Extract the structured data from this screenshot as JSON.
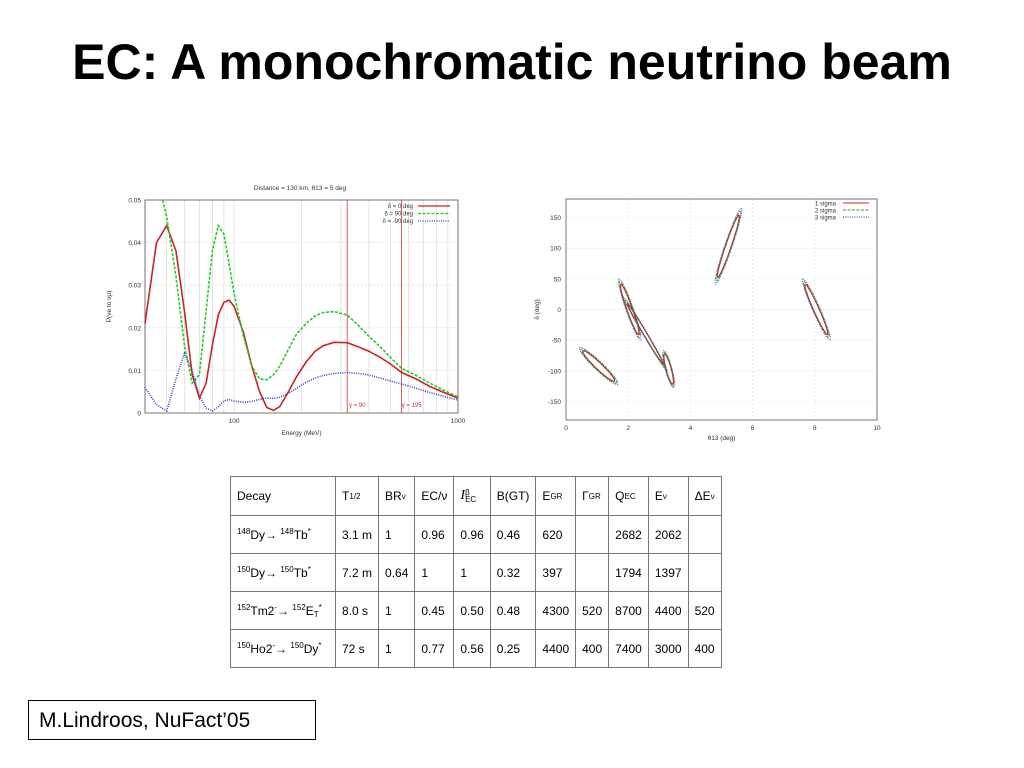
{
  "slide": {
    "title": "EC: A monochromatic neutrino beam",
    "credit": "M.Lindroos, NuFact’05"
  },
  "chart_data": [
    {
      "type": "line",
      "title": "Distance = 130 km, θ13 = 5 deg",
      "xlabel": "Energy (MeV)",
      "ylabel": "P(νe to νμ)",
      "xscale": "log",
      "xlim": [
        40,
        1000
      ],
      "ylim": [
        0,
        0.05
      ],
      "x_ticks": [
        "100",
        "1000"
      ],
      "y_ticks": [
        "0",
        "0.01",
        "0.02",
        "0.03",
        "0.04",
        "0.05"
      ],
      "legend_position": "top-right",
      "annotations": [
        {
          "text": "γ = 90",
          "x": 320
        },
        {
          "text": "γ = 195",
          "x": 560
        }
      ],
      "series": [
        {
          "name": "δ = 0 deg",
          "color": "#cc2222",
          "style": "solid",
          "x": [
            40,
            45,
            50,
            55,
            60,
            65,
            70,
            75,
            80,
            85,
            90,
            95,
            100,
            110,
            120,
            130,
            140,
            150,
            160,
            175,
            190,
            210,
            230,
            250,
            280,
            320,
            360,
            400,
            450,
            500,
            560,
            650,
            750,
            850,
            1000
          ],
          "y": [
            0.021,
            0.04,
            0.044,
            0.038,
            0.024,
            0.009,
            0.0035,
            0.007,
            0.016,
            0.023,
            0.026,
            0.0265,
            0.025,
            0.019,
            0.011,
            0.005,
            0.0013,
            0.0006,
            0.0015,
            0.005,
            0.0085,
            0.012,
            0.0145,
            0.0158,
            0.0166,
            0.0165,
            0.0155,
            0.0145,
            0.013,
            0.0115,
            0.0095,
            0.008,
            0.0062,
            0.005,
            0.0035
          ]
        },
        {
          "name": "δ = 90 deg",
          "color": "#22cc22",
          "style": "dashed",
          "x": [
            48,
            50,
            55,
            60,
            65,
            70,
            75,
            80,
            85,
            90,
            95,
            100,
            110,
            120,
            130,
            140,
            150,
            160,
            175,
            190,
            210,
            230,
            250,
            280,
            320,
            360,
            400,
            450,
            500,
            560,
            650,
            750,
            850,
            1000
          ],
          "y": [
            0.05,
            0.046,
            0.032,
            0.016,
            0.007,
            0.009,
            0.024,
            0.038,
            0.044,
            0.042,
            0.035,
            0.028,
            0.018,
            0.011,
            0.008,
            0.0078,
            0.009,
            0.011,
            0.015,
            0.0185,
            0.021,
            0.0228,
            0.0236,
            0.0238,
            0.023,
            0.0205,
            0.018,
            0.0155,
            0.013,
            0.0105,
            0.0088,
            0.007,
            0.0055,
            0.0038
          ]
        },
        {
          "name": "δ = -90 deg",
          "color": "#3344bb",
          "style": "dotted",
          "x": [
            40,
            45,
            50,
            55,
            60,
            65,
            70,
            75,
            80,
            85,
            90,
            95,
            100,
            110,
            120,
            130,
            140,
            150,
            160,
            175,
            190,
            210,
            230,
            250,
            280,
            320,
            360,
            400,
            450,
            500,
            560,
            650,
            750,
            850,
            1000
          ],
          "y": [
            0.006,
            0.002,
            0.0005,
            0.008,
            0.014,
            0.01,
            0.004,
            0.0012,
            0.0005,
            0.0015,
            0.0028,
            0.0032,
            0.0028,
            0.0025,
            0.0027,
            0.0032,
            0.0035,
            0.0034,
            0.0037,
            0.0046,
            0.0058,
            0.0072,
            0.0082,
            0.0088,
            0.0093,
            0.0095,
            0.0093,
            0.0089,
            0.0082,
            0.0075,
            0.0068,
            0.0058,
            0.0048,
            0.004,
            0.003
          ]
        }
      ]
    },
    {
      "type": "scatter",
      "title": "",
      "xlabel": "θ13 (deg)",
      "ylabel": "δ (deg)",
      "xlim": [
        0,
        10
      ],
      "ylim": [
        -180,
        180
      ],
      "x_ticks": [
        "0",
        "2",
        "4",
        "6",
        "8",
        "10"
      ],
      "y_ticks": [
        "150",
        "100",
        "50",
        "0",
        "-50",
        "-100",
        "-150"
      ],
      "legend_position": "top-right",
      "series": [
        {
          "name": "1 sigma",
          "color": "#cc2222",
          "style": "solid"
        },
        {
          "name": "2 sigma",
          "color": "#22aa22",
          "style": "dashed"
        },
        {
          "name": "3 sigma",
          "color": "#3344bb",
          "style": "dotted"
        }
      ],
      "regions": [
        {
          "cx": 1.05,
          "cy": -92,
          "dx": 0.62,
          "dy": -30,
          "w": 0.14
        },
        {
          "cx": 2.05,
          "cy": 0,
          "dx": 0.35,
          "dy": -50,
          "w": 0.12
        },
        {
          "cx": 3.3,
          "cy": -97,
          "dx": 0.16,
          "dy": -30,
          "w": 0.11
        },
        {
          "cx": 5.22,
          "cy": 103,
          "dx": 0.42,
          "dy": 62,
          "w": 0.12
        },
        {
          "cx": 8.05,
          "cy": 0,
          "dx": -0.44,
          "dy": 50,
          "w": 0.12
        },
        {
          "cx": 2.55,
          "cy": -40,
          "dx": 0.7,
          "dy": -60,
          "w": 0.07
        }
      ]
    }
  ],
  "table": {
    "headers": [
      {
        "main": "Decay"
      },
      {
        "main": "T",
        "sub": "1/2"
      },
      {
        "main": "BR",
        "sub": "ν"
      },
      {
        "main": "EC/ν"
      },
      {
        "main": "I",
        "sup": "β",
        "sub": "EC"
      },
      {
        "main": "B(GT)"
      },
      {
        "main": "E",
        "sub": "GR"
      },
      {
        "main": "Γ",
        "sub": "GR"
      },
      {
        "main": "Q",
        "sub": "EC"
      },
      {
        "main": "E",
        "sub": "ν"
      },
      {
        "main": "ΔE",
        "sub": "ν"
      }
    ],
    "rows": [
      {
        "decay": [
          {
            "sup": "148"
          },
          {
            "t": "Dy→ "
          },
          {
            "sup": "148"
          },
          {
            "t": "Tb"
          },
          {
            "sup": "*"
          }
        ],
        "cells": [
          "3.1 m",
          "1",
          "0.96",
          "0.96",
          "0.46",
          "620",
          "",
          "2682",
          "2062",
          ""
        ]
      },
      {
        "decay": [
          {
            "sup": "150"
          },
          {
            "t": "Dy→ "
          },
          {
            "sup": "150"
          },
          {
            "t": "Tb"
          },
          {
            "sup": "*"
          }
        ],
        "cells": [
          "7.2 m",
          "0.64",
          "1",
          "1",
          "0.32",
          "397",
          "",
          "1794",
          "1397",
          ""
        ]
      },
      {
        "decay": [
          {
            "sup": "152"
          },
          {
            "t": "Tm2"
          },
          {
            "sup": "-"
          },
          {
            "t": "→ "
          },
          {
            "sup": "152"
          },
          {
            "t": "E"
          },
          {
            "sub": "T"
          },
          {
            "sup": "*"
          }
        ],
        "cells": [
          "8.0 s",
          "1",
          "0.45",
          "0.50",
          "0.48",
          "4300",
          "520",
          "8700",
          "4400",
          "520"
        ]
      },
      {
        "decay": [
          {
            "sup": "150"
          },
          {
            "t": "Ho2"
          },
          {
            "sup": "-"
          },
          {
            "t": "→ "
          },
          {
            "sup": "150"
          },
          {
            "t": "Dy"
          },
          {
            "sup": "*"
          }
        ],
        "cells": [
          "72 s",
          "1",
          "0.77",
          "0.56",
          "0.25",
          "4400",
          "400",
          "7400",
          "3000",
          "400"
        ]
      }
    ]
  }
}
